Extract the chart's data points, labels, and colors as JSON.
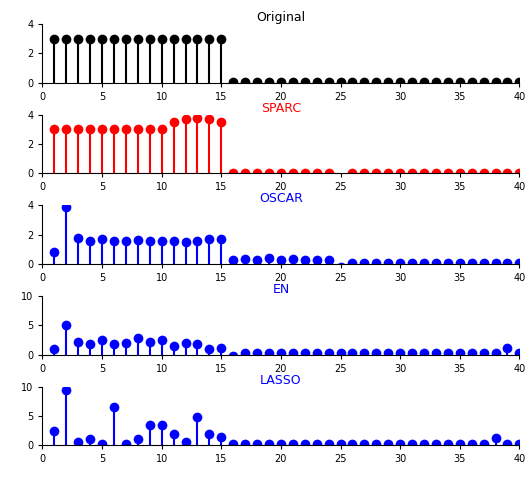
{
  "n": 40,
  "original": {
    "title": "Original",
    "color": "black",
    "values": [
      3.0,
      3.0,
      3.0,
      3.0,
      3.0,
      3.0,
      3.0,
      3.0,
      3.0,
      3.0,
      3.0,
      3.0,
      3.0,
      3.0,
      3.0,
      0.05,
      0.05,
      0.05,
      0.05,
      0.05,
      0.05,
      0.05,
      0.05,
      0.05,
      0.05,
      0.05,
      0.05,
      0.05,
      0.05,
      0.05,
      0.05,
      0.05,
      0.05,
      0.05,
      0.05,
      0.05,
      0.05,
      0.05,
      0.05,
      0.05
    ],
    "ylim": [
      0,
      4
    ]
  },
  "sparc": {
    "title": "SPARC",
    "color": "red",
    "values": [
      3.0,
      3.0,
      3.0,
      3.0,
      3.0,
      3.0,
      3.0,
      3.0,
      3.0,
      3.0,
      3.5,
      3.7,
      3.8,
      3.7,
      3.5,
      0.05,
      0.05,
      0.05,
      0.05,
      0.05,
      0.05,
      0.05,
      0.05,
      0.05,
      -0.3,
      0.05,
      0.05,
      0.05,
      0.05,
      0.05,
      0.05,
      0.05,
      0.05,
      0.05,
      0.05,
      0.05,
      0.05,
      0.05,
      0.05,
      0.05
    ],
    "ylim": [
      0,
      4
    ]
  },
  "oscar": {
    "title": "OSCAR",
    "color": "blue",
    "values": [
      0.8,
      3.9,
      1.8,
      1.6,
      1.7,
      1.6,
      1.6,
      1.65,
      1.6,
      1.6,
      1.6,
      1.5,
      1.6,
      1.7,
      1.7,
      0.3,
      0.35,
      0.3,
      0.4,
      0.3,
      0.35,
      0.25,
      0.3,
      0.3,
      -0.2,
      0.1,
      0.1,
      0.1,
      0.1,
      0.1,
      0.1,
      0.1,
      0.1,
      0.1,
      0.1,
      0.1,
      0.1,
      0.1,
      0.1,
      0.1
    ],
    "ylim": [
      0,
      4
    ]
  },
  "en": {
    "title": "EN",
    "color": "blue",
    "values": [
      1.0,
      5.0,
      2.2,
      1.8,
      2.5,
      1.8,
      2.0,
      2.8,
      2.2,
      2.5,
      1.5,
      2.0,
      1.8,
      1.0,
      1.2,
      -0.3,
      0.2,
      0.2,
      0.3,
      0.2,
      0.2,
      0.2,
      0.3,
      0.2,
      0.2,
      0.2,
      0.2,
      0.2,
      0.2,
      0.2,
      0.2,
      0.2,
      0.2,
      0.2,
      0.2,
      0.2,
      0.2,
      0.2,
      1.2,
      0.2
    ],
    "ylim": [
      0,
      10
    ]
  },
  "lasso": {
    "title": "LASSO",
    "color": "blue",
    "values": [
      2.5,
      9.5,
      0.5,
      1.0,
      0.3,
      6.5,
      0.3,
      1.0,
      3.5,
      3.5,
      2.0,
      0.5,
      4.8,
      2.0,
      1.5,
      0.2,
      0.2,
      0.2,
      0.2,
      0.2,
      0.2,
      0.2,
      0.2,
      0.2,
      0.2,
      0.2,
      0.2,
      0.2,
      0.2,
      0.2,
      0.2,
      0.2,
      0.2,
      0.2,
      0.2,
      0.2,
      0.2,
      1.2,
      0.2,
      0.2
    ],
    "ylim": [
      0,
      10
    ]
  },
  "xlim": [
    0,
    40
  ],
  "xticks": [
    0,
    5,
    10,
    15,
    20,
    25,
    30,
    35,
    40
  ],
  "markersize": 7,
  "linewidth": 1.5,
  "title_color_original": "black",
  "title_color_sparc": "red",
  "title_color_others": "blue"
}
